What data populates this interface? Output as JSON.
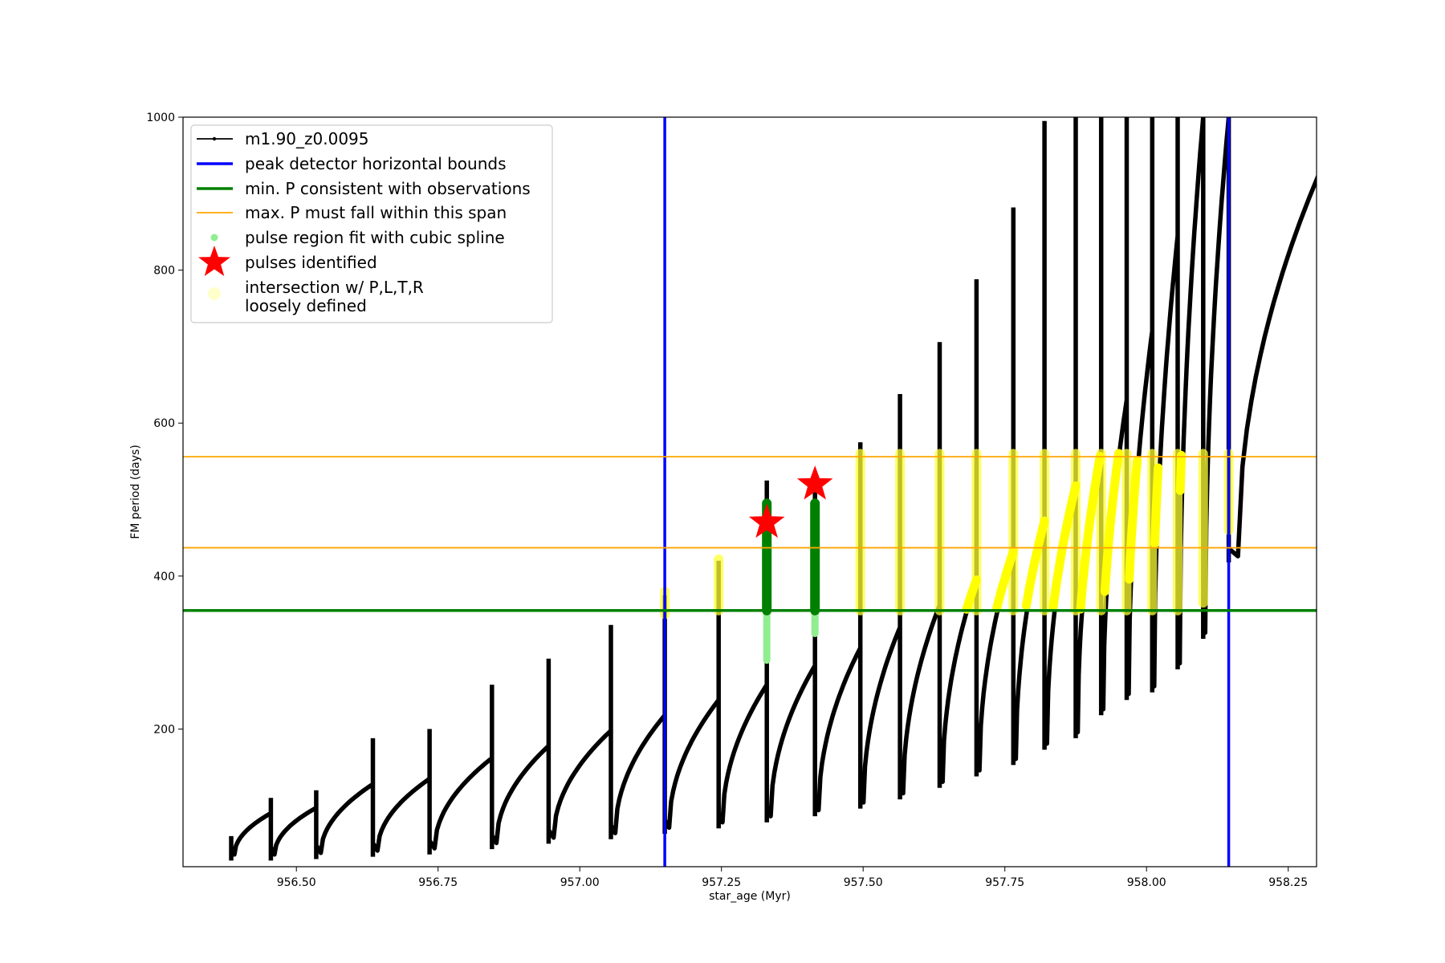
{
  "chart_data": {
    "type": "line",
    "xlabel": "star_age (Myr)",
    "ylabel": "FM period (days)",
    "xlim": [
      956.3,
      958.3
    ],
    "ylim": [
      20,
      1000
    ],
    "xticks": [
      956.5,
      956.75,
      957.0,
      957.25,
      957.5,
      957.75,
      958.0,
      958.25
    ],
    "xtick_labels": [
      "956.50",
      "956.75",
      "957.00",
      "957.25",
      "957.50",
      "957.75",
      "958.00",
      "958.25"
    ],
    "yticks": [
      200,
      400,
      600,
      800,
      1000
    ],
    "ytick_labels": [
      "200",
      "400",
      "600",
      "800",
      "1000"
    ],
    "grid": false,
    "legend_position": "top-left",
    "legend": [
      {
        "label": "m1.90_z0.0095",
        "kind": "line-marker",
        "color": "#000000"
      },
      {
        "label": "peak detector horizontal bounds",
        "kind": "line",
        "color": "#0000ff"
      },
      {
        "label": "min. P consistent with observations",
        "kind": "line",
        "color": "#008000"
      },
      {
        "label": "max. P must fall within this span",
        "kind": "thin-line",
        "color": "#ffa500"
      },
      {
        "label": "pulse region fit with cubic spline",
        "kind": "dot",
        "color": "#90ee90"
      },
      {
        "label": "pulses identified",
        "kind": "star",
        "color": "#ff0000"
      },
      {
        "label": "intersection w/ P,L,T,R",
        "label2": "loosely defined",
        "kind": "dot",
        "color": "#ffffcc"
      }
    ],
    "vertical_lines": [
      957.15,
      958.145
    ],
    "min_period_line": 355,
    "max_period_span": [
      437,
      556
    ],
    "series_name": "m1.90_z0.0095",
    "pulses": [
      {
        "t": 956.385,
        "start": 40,
        "peak": 90,
        "spike": 60
      },
      {
        "t": 956.455,
        "start": 40,
        "peak": 97,
        "spike": 110
      },
      {
        "t": 956.535,
        "start": 42,
        "peak": 128,
        "spike": 120
      },
      {
        "t": 956.635,
        "start": 45,
        "peak": 135,
        "spike": 188
      },
      {
        "t": 956.735,
        "start": 48,
        "peak": 162,
        "spike": 200
      },
      {
        "t": 956.845,
        "start": 55,
        "peak": 178,
        "spike": 258
      },
      {
        "t": 956.945,
        "start": 62,
        "peak": 198,
        "spike": 292
      },
      {
        "t": 957.055,
        "start": 68,
        "peak": 218,
        "spike": 336
      },
      {
        "t": 957.15,
        "start": 75,
        "peak": 238,
        "spike": 375
      },
      {
        "t": 957.245,
        "start": 82,
        "peak": 258,
        "spike": 420
      },
      {
        "t": 957.33,
        "start": 90,
        "peak": 283,
        "spike": 525
      },
      {
        "t": 957.415,
        "start": 98,
        "peak": 306,
        "spike": 520
      },
      {
        "t": 957.495,
        "start": 108,
        "peak": 333,
        "spike": 575
      },
      {
        "t": 957.565,
        "start": 120,
        "peak": 362,
        "spike": 638
      },
      {
        "t": 957.635,
        "start": 135,
        "peak": 395,
        "spike": 706
      },
      {
        "t": 957.7,
        "start": 150,
        "peak": 432,
        "spike": 788
      },
      {
        "t": 957.765,
        "start": 165,
        "peak": 472,
        "spike": 882
      },
      {
        "t": 957.82,
        "start": 185,
        "peak": 518,
        "spike": 995
      },
      {
        "t": 957.875,
        "start": 200,
        "peak": 565,
        "spike": 1000
      },
      {
        "t": 957.92,
        "start": 230,
        "peak": 630,
        "spike": 1000
      },
      {
        "t": 957.965,
        "start": 250,
        "peak": 720,
        "spike": 1000
      },
      {
        "t": 958.01,
        "start": 260,
        "peak": 845,
        "spike": 1000
      },
      {
        "t": 958.055,
        "start": 290,
        "peak": 1000,
        "spike": 1000
      },
      {
        "t": 958.1,
        "start": 330,
        "peak": 1000,
        "spike": 1000
      },
      {
        "t": 958.145,
        "start": 430,
        "peak": 1000,
        "spike": 1000
      }
    ],
    "green_pulses": [
      {
        "t": 957.33,
        "low": 355,
        "high": 495,
        "spline_low": 290
      },
      {
        "t": 957.415,
        "low": 355,
        "high": 495,
        "spline_low": 325
      }
    ],
    "stars": [
      {
        "t": 957.33,
        "p": 470
      },
      {
        "t": 957.415,
        "p": 520
      }
    ],
    "yellow_bands": [
      {
        "t": 957.15,
        "low": 350,
        "high": 380
      },
      {
        "t": 957.245,
        "low": 355,
        "high": 422
      },
      {
        "t": 957.495,
        "low": 355,
        "high": 560
      },
      {
        "t": 957.565,
        "low": 355,
        "high": 560
      },
      {
        "t": 957.635,
        "low": 355,
        "high": 560
      },
      {
        "t": 957.7,
        "low": 355,
        "high": 560
      },
      {
        "t": 957.765,
        "low": 355,
        "high": 560
      },
      {
        "t": 957.82,
        "low": 355,
        "high": 560
      },
      {
        "t": 957.875,
        "low": 355,
        "high": 560
      },
      {
        "t": 957.92,
        "low": 355,
        "high": 560
      },
      {
        "t": 957.965,
        "low": 355,
        "high": 560
      },
      {
        "t": 958.01,
        "low": 355,
        "high": 560
      },
      {
        "t": 958.055,
        "low": 355,
        "high": 560
      },
      {
        "t": 958.1,
        "low": 365,
        "high": 560
      },
      {
        "t": 958.145,
        "low": 460,
        "high": 560
      }
    ]
  }
}
